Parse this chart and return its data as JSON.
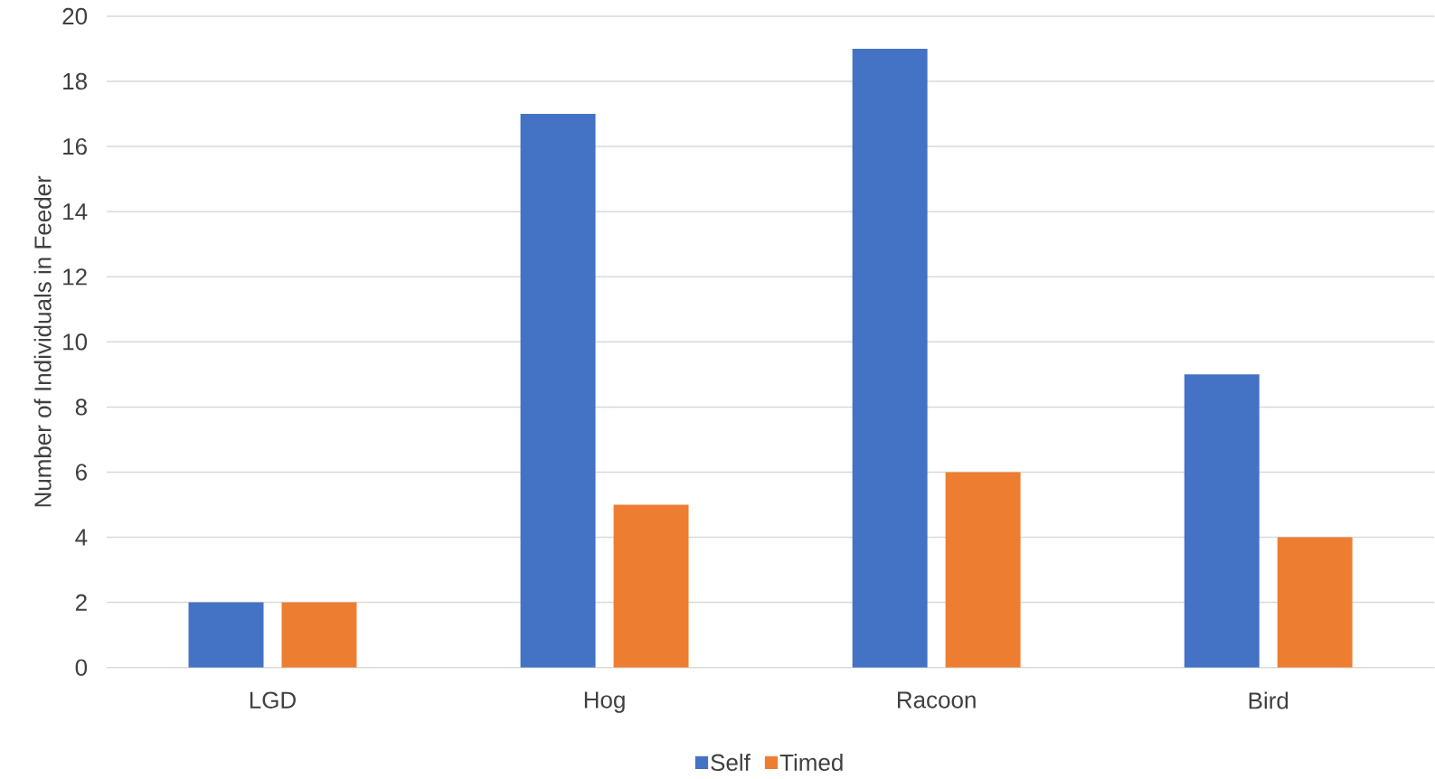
{
  "chart_data": {
    "type": "bar",
    "ylabel": "Number of Individuals in Feeder",
    "categories": [
      "LGD",
      "Hog",
      "Racoon",
      "Bird"
    ],
    "series": [
      {
        "name": "Self",
        "color": "#4472c4",
        "values": [
          2,
          17,
          19,
          9
        ]
      },
      {
        "name": "Timed",
        "color": "#ed7d31",
        "values": [
          2,
          5,
          6,
          4
        ]
      }
    ],
    "ylim": [
      0,
      20
    ],
    "yticks": [
      0,
      2,
      4,
      6,
      8,
      10,
      12,
      14,
      16,
      18,
      20
    ],
    "grid": "y",
    "legend": "bottom"
  }
}
